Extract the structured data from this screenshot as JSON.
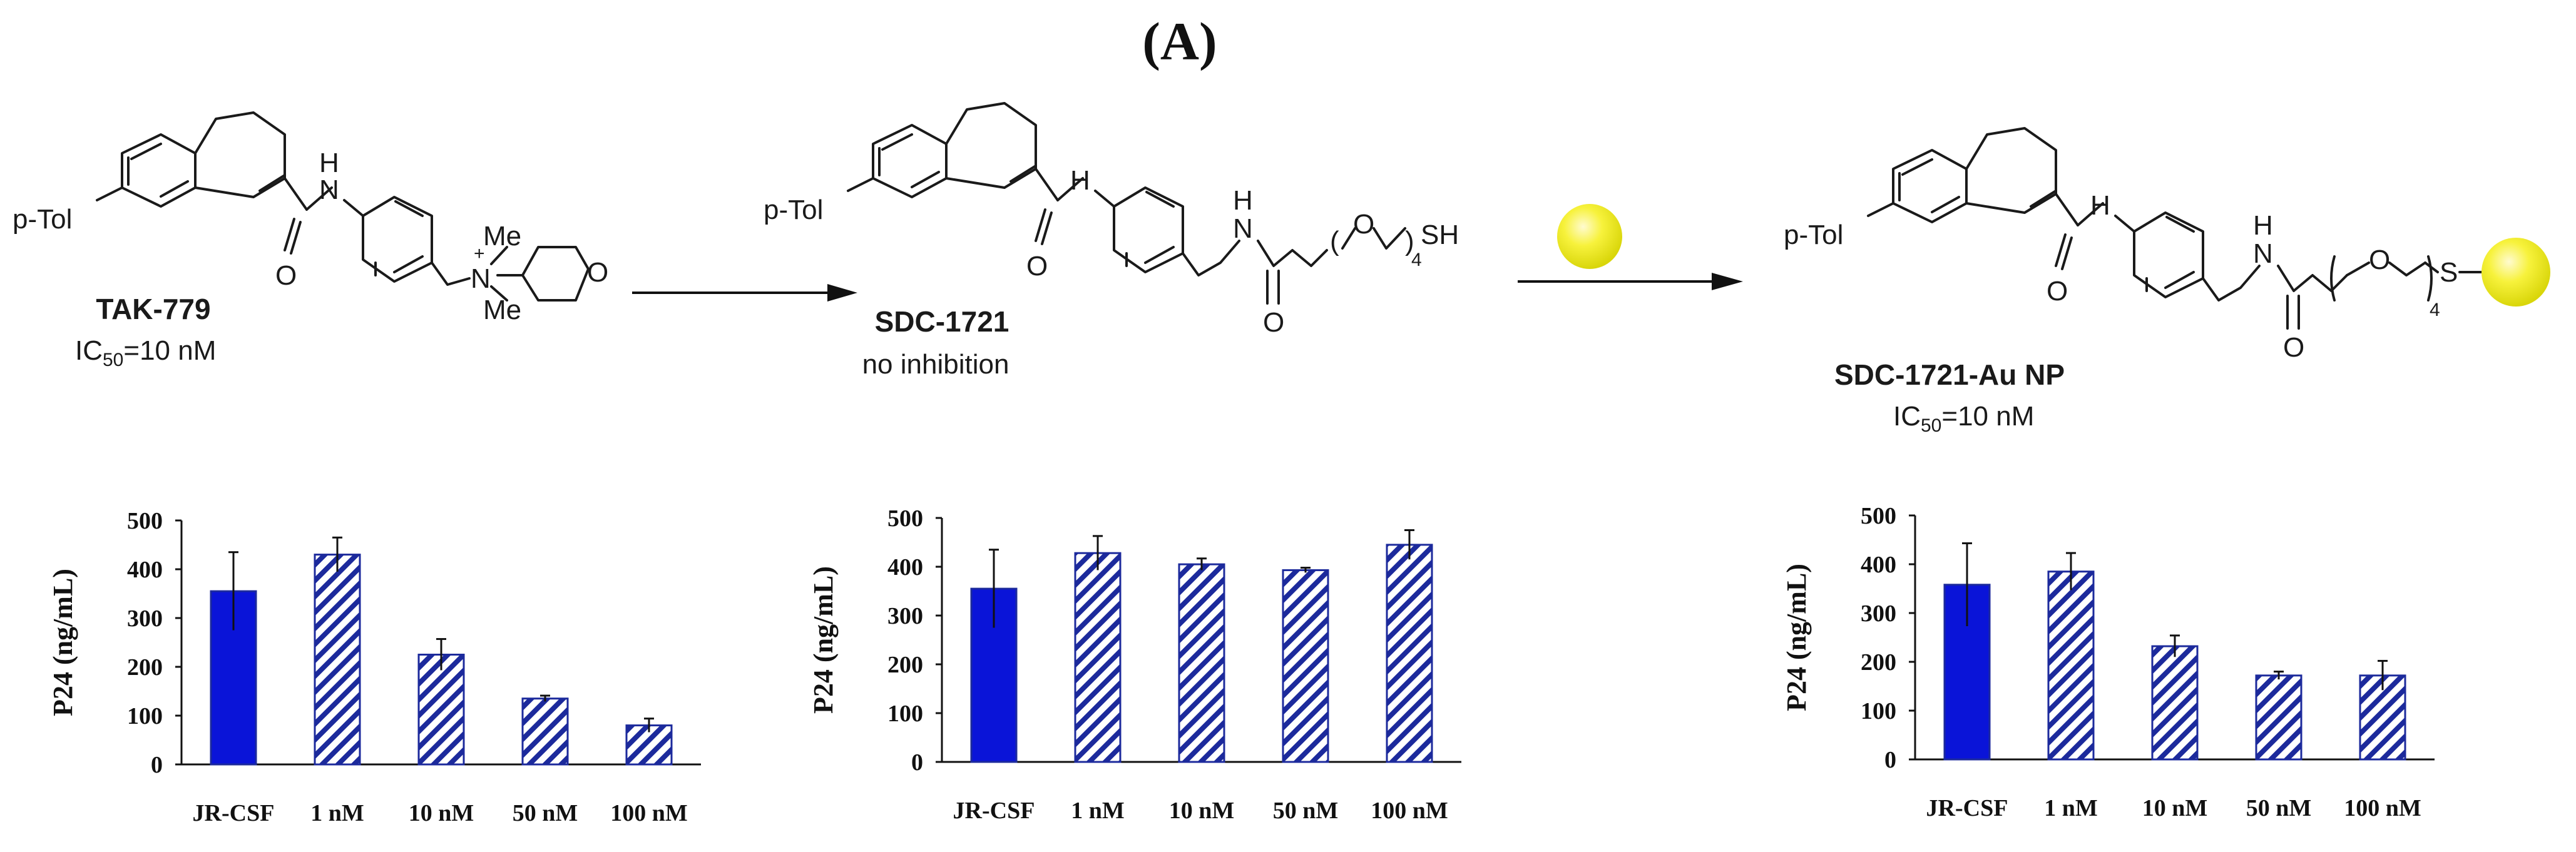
{
  "panel_label": "(A)",
  "compounds": [
    {
      "name": "TAK-779",
      "activity_prefix": "IC",
      "activity_sub": "50",
      "activity_value": "=10 nM",
      "atoms": {
        "ptol": "p-Tol",
        "H": "H",
        "O": "O",
        "N": "N",
        "plus": "+",
        "Me1": "Me",
        "Me2": "Me",
        "O2": "O"
      }
    },
    {
      "name": "SDC-1721",
      "activity_text": "no inhibition",
      "atoms": {
        "ptol": "p-Tol",
        "H": "H",
        "O": "O",
        "H2": "H",
        "N2": "N",
        "O3": "O",
        "open": "(",
        "O4": "O",
        "close": ")",
        "sub4": "4",
        "SH": "SH"
      }
    },
    {
      "name": "SDC-1721-Au NP",
      "activity_prefix": "IC",
      "activity_sub": "50",
      "activity_value": "=10 nM",
      "atoms": {
        "ptol": "p-Tol",
        "H": "H",
        "O": "O",
        "H2": "H",
        "N2": "N",
        "O3": "O",
        "O4": "O",
        "sub4": "4",
        "S": "S"
      }
    }
  ],
  "colors": {
    "solid_bar": "#0a14d8",
    "hatch": "#1c2a9c",
    "nanoparticle": "#f2ef1a"
  },
  "chart_data": [
    {
      "type": "bar",
      "ylabel": "P24 (ng/mL)",
      "ylim": [
        0,
        500
      ],
      "yticks": [
        "0",
        "100",
        "200",
        "300",
        "400",
        "500"
      ],
      "categories": [
        "JR-CSF",
        "1 nM",
        "10 nM",
        "50 nM",
        "100 nM"
      ],
      "values": [
        355,
        430,
        225,
        135,
        80
      ],
      "errors": [
        80,
        35,
        32,
        6,
        14
      ],
      "style": [
        "solid",
        "hatched",
        "hatched",
        "hatched",
        "hatched"
      ]
    },
    {
      "type": "bar",
      "ylabel": "P24 (ng/mL)",
      "ylim": [
        0,
        500
      ],
      "yticks": [
        "0",
        "100",
        "200",
        "300",
        "400",
        "500"
      ],
      "categories": [
        "JR-CSF",
        "1 nM",
        "10 nM",
        "50 nM",
        "100 nM"
      ],
      "values": [
        355,
        428,
        405,
        393,
        445
      ],
      "errors": [
        80,
        35,
        12,
        5,
        30
      ],
      "style": [
        "solid",
        "hatched",
        "hatched",
        "hatched",
        "hatched"
      ]
    },
    {
      "type": "bar",
      "ylabel": "P24 (ng/mL)",
      "ylim": [
        0,
        500
      ],
      "yticks": [
        "0",
        "100",
        "200",
        "300",
        "400",
        "500"
      ],
      "categories": [
        "JR-CSF",
        "1 nM",
        "10 nM",
        "50 nM",
        "100 nM"
      ],
      "values": [
        358,
        385,
        232,
        172,
        172
      ],
      "errors": [
        85,
        38,
        22,
        8,
        30
      ],
      "style": [
        "solid",
        "hatched",
        "hatched",
        "hatched",
        "hatched"
      ]
    }
  ]
}
